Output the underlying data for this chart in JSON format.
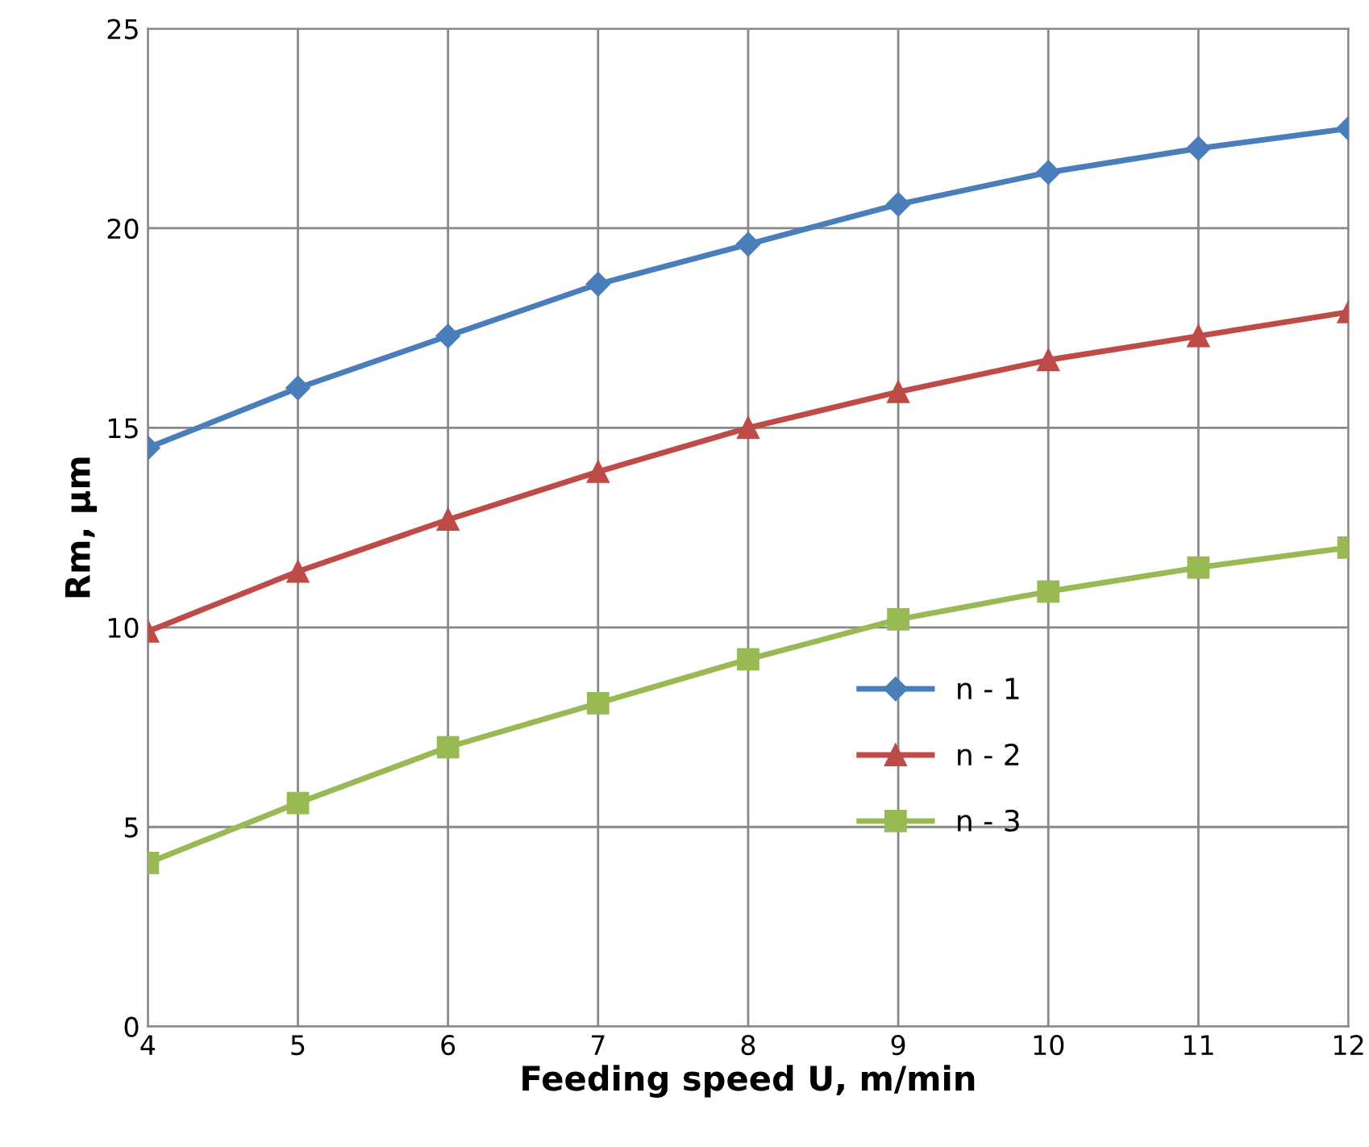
{
  "chart_data": {
    "type": "line",
    "xlabel": "Feeding speed U, m/min",
    "ylabel": "Rm, µm",
    "x": [
      4,
      5,
      6,
      7,
      8,
      9,
      10,
      11,
      12
    ],
    "series": [
      {
        "name": "n - 1",
        "color": "#4a7ebb",
        "marker": "diamond",
        "values": [
          14.5,
          16.0,
          17.3,
          18.6,
          19.6,
          20.6,
          21.4,
          22.0,
          22.5
        ]
      },
      {
        "name": "n - 2",
        "color": "#be4b48",
        "marker": "triangle",
        "values": [
          9.9,
          11.4,
          12.7,
          13.9,
          15.0,
          15.9,
          16.7,
          17.3,
          17.9
        ]
      },
      {
        "name": "n - 3",
        "color": "#98b954",
        "marker": "square",
        "values": [
          4.1,
          5.6,
          7.0,
          8.1,
          9.2,
          10.2,
          10.9,
          11.5,
          12.0
        ]
      }
    ],
    "xlim": [
      4,
      12
    ],
    "xticks": [
      4,
      5,
      6,
      7,
      8,
      9,
      10,
      11,
      12
    ],
    "ylim": [
      0,
      25
    ],
    "yticks": [
      0,
      5,
      10,
      15,
      20,
      25
    ],
    "grid": true,
    "legend": "bottom right",
    "line_style": "solid"
  }
}
